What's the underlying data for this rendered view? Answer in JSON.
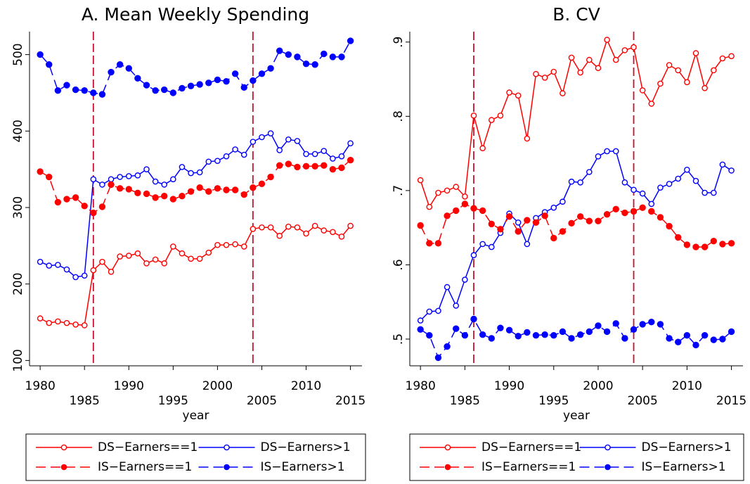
{
  "chart_data": [
    {
      "type": "line",
      "title": "A. Mean Weekly Spending",
      "x_label": "year",
      "x": [
        1980,
        1981,
        1982,
        1983,
        1984,
        1985,
        1986,
        1987,
        1988,
        1989,
        1990,
        1991,
        1992,
        1993,
        1994,
        1995,
        1996,
        1997,
        1998,
        1999,
        2000,
        2001,
        2002,
        2003,
        2004,
        2005,
        2006,
        2007,
        2008,
        2009,
        2010,
        2011,
        2012,
        2013,
        2014,
        2015
      ],
      "xlim": [
        1978.8,
        2016.3
      ],
      "xticks": [
        1980,
        1985,
        1990,
        1995,
        2000,
        2005,
        2010,
        2015
      ],
      "ylim": [
        93,
        530
      ],
      "yticks": [
        100,
        200,
        300,
        400,
        500
      ],
      "vlines": [
        1986,
        2004
      ],
      "vline_color": "#c8102e",
      "series": [
        {
          "name": "DS−Earners==1",
          "color": "#ff0000",
          "dash": false,
          "marker": "hollow",
          "values": [
            155,
            149,
            151,
            149,
            147,
            146,
            218,
            229,
            216,
            236,
            237,
            240,
            227,
            232,
            227,
            249,
            240,
            233,
            233,
            241,
            251,
            251,
            252,
            249,
            272,
            274,
            274,
            263,
            275,
            274,
            266,
            276,
            270,
            268,
            262,
            276
          ]
        },
        {
          "name": "DS−Earners>1",
          "color": "#0000ff",
          "dash": false,
          "marker": "hollow",
          "values": [
            229,
            224,
            225,
            219,
            209,
            211,
            337,
            330,
            337,
            340,
            341,
            342,
            350,
            334,
            330,
            337,
            353,
            345,
            346,
            360,
            361,
            367,
            376,
            369,
            386,
            392,
            397,
            375,
            389,
            387,
            370,
            370,
            374,
            364,
            367,
            384
          ]
        },
        {
          "name": "IS−Earners==1",
          "color": "#ff0000",
          "dash": true,
          "marker": "filled",
          "values": [
            347,
            340,
            307,
            311,
            313,
            302,
            293,
            301,
            330,
            325,
            324,
            319,
            318,
            313,
            315,
            311,
            315,
            321,
            326,
            321,
            325,
            323,
            323,
            317,
            326,
            331,
            340,
            355,
            357,
            353,
            354,
            354,
            355,
            350,
            352,
            362
          ]
        },
        {
          "name": "IS−Earners>1",
          "color": "#0000ff",
          "dash": true,
          "marker": "filled",
          "values": [
            500,
            487,
            453,
            460,
            454,
            453,
            450,
            448,
            477,
            487,
            482,
            469,
            460,
            453,
            454,
            450,
            456,
            459,
            461,
            463,
            467,
            465,
            475,
            457,
            466,
            475,
            482,
            505,
            500,
            497,
            488,
            487,
            501,
            497,
            497,
            518
          ]
        }
      ]
    },
    {
      "type": "line",
      "title": "B. CV",
      "x_label": "year",
      "x": [
        1980,
        1981,
        1982,
        1983,
        1984,
        1985,
        1986,
        1987,
        1988,
        1989,
        1990,
        1991,
        1992,
        1993,
        1994,
        1995,
        1996,
        1997,
        1998,
        1999,
        2000,
        2001,
        2002,
        2003,
        2004,
        2005,
        2006,
        2007,
        2008,
        2009,
        2010,
        2011,
        2012,
        2013,
        2014,
        2015
      ],
      "xlim": [
        1978.8,
        2016.3
      ],
      "xticks": [
        1980,
        1985,
        1990,
        1995,
        2000,
        2005,
        2010,
        2015
      ],
      "ylim": [
        0.464,
        0.914
      ],
      "yticks": [
        {
          "value": 0.5,
          "label": ".5"
        },
        {
          "value": 0.6,
          "label": ".6"
        },
        {
          "value": 0.7,
          "label": ".7"
        },
        {
          "value": 0.8,
          "label": ".8"
        },
        {
          "value": 0.9,
          "label": ".9"
        }
      ],
      "vlines": [
        1986,
        2004
      ],
      "vline_color": "#c8102e",
      "series": [
        {
          "name": "DS−Earners==1",
          "color": "#ff0000",
          "dash": false,
          "marker": "hollow",
          "values": [
            0.714,
            0.678,
            0.697,
            0.7,
            0.705,
            0.692,
            0.801,
            0.757,
            0.795,
            0.801,
            0.832,
            0.828,
            0.77,
            0.857,
            0.852,
            0.86,
            0.831,
            0.879,
            0.859,
            0.876,
            0.865,
            0.903,
            0.876,
            0.889,
            0.893,
            0.835,
            0.817,
            0.844,
            0.869,
            0.862,
            0.846,
            0.885,
            0.838,
            0.862,
            0.878,
            0.881
          ]
        },
        {
          "name": "DS−Earners>1",
          "color": "#0000ff",
          "dash": false,
          "marker": "hollow",
          "values": [
            0.525,
            0.537,
            0.538,
            0.57,
            0.545,
            0.58,
            0.613,
            0.628,
            0.624,
            0.643,
            0.669,
            0.657,
            0.628,
            0.663,
            0.671,
            0.677,
            0.685,
            0.712,
            0.711,
            0.725,
            0.746,
            0.753,
            0.753,
            0.711,
            0.701,
            0.696,
            0.682,
            0.704,
            0.709,
            0.716,
            0.728,
            0.713,
            0.697,
            0.697,
            0.735,
            0.727
          ]
        },
        {
          "name": "IS−Earners==1",
          "color": "#ff0000",
          "dash": true,
          "marker": "filled",
          "values": [
            0.653,
            0.629,
            0.629,
            0.666,
            0.673,
            0.682,
            0.676,
            0.673,
            0.655,
            0.648,
            0.665,
            0.645,
            0.66,
            0.657,
            0.666,
            0.636,
            0.645,
            0.656,
            0.665,
            0.659,
            0.659,
            0.668,
            0.675,
            0.67,
            0.672,
            0.677,
            0.672,
            0.664,
            0.652,
            0.637,
            0.627,
            0.624,
            0.624,
            0.632,
            0.628,
            0.629
          ]
        },
        {
          "name": "IS−Earners>1",
          "color": "#0000ff",
          "dash": true,
          "marker": "filled",
          "values": [
            0.513,
            0.505,
            0.475,
            0.49,
            0.514,
            0.505,
            0.527,
            0.506,
            0.501,
            0.515,
            0.512,
            0.504,
            0.509,
            0.505,
            0.506,
            0.505,
            0.51,
            0.501,
            0.506,
            0.51,
            0.518,
            0.51,
            0.521,
            0.501,
            0.513,
            0.52,
            0.523,
            0.52,
            0.501,
            0.496,
            0.505,
            0.492,
            0.505,
            0.499,
            0.5,
            0.51
          ]
        }
      ]
    }
  ]
}
